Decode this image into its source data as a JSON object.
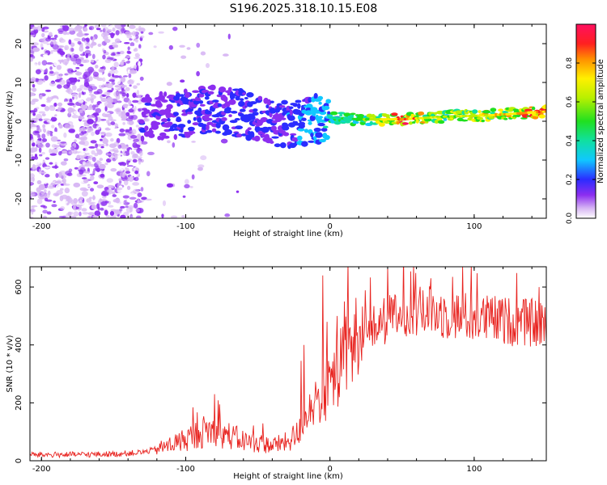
{
  "title": "S196.2025.318.10.15.E08",
  "colors": {
    "snr_line": "#e8231f",
    "scatter_light": "#d9c6f2",
    "scatter_dark": "#7a1fe0",
    "frame": "#000000"
  },
  "chart_data": [
    {
      "type": "heatmap",
      "title": "S196.2025.318.10.15.E08",
      "xlabel": "Height of straight line (km)",
      "ylabel": "Frequency (Hz)",
      "xlim": [
        -208,
        150
      ],
      "ylim": [
        -25,
        25
      ],
      "xticks": [
        -200,
        -100,
        0,
        100
      ],
      "xtick_labels": [
        "-200",
        "-100",
        "0",
        "100"
      ],
      "yticks": [
        -20,
        -10,
        0,
        10,
        20
      ],
      "ytick_labels": [
        "-20",
        "-10",
        "0",
        "10",
        "20"
      ],
      "ridge": {
        "x": [
          -130,
          -100,
          -80,
          -60,
          -40,
          -20,
          0,
          20,
          50,
          80,
          110,
          150
        ],
        "freq": [
          1,
          2,
          3,
          2,
          -1,
          0,
          1,
          0.5,
          0.5,
          1.2,
          1.5,
          2.5
        ],
        "amplitude": [
          0.25,
          0.3,
          0.32,
          0.35,
          0.3,
          0.4,
          0.5,
          0.6,
          1.0,
          0.7,
          0.85,
          0.95
        ]
      },
      "noise_region": {
        "x": [
          -208,
          -130
        ],
        "freq": [
          -25,
          25
        ],
        "amplitude_range": [
          0,
          0.15
        ]
      },
      "colorbar": {
        "label": "Normalized spectral amplitude",
        "ticks": [
          0.0,
          0.2,
          0.4,
          0.6,
          0.8
        ],
        "tick_labels": [
          "0.0",
          "0.2",
          "0.4",
          "0.6",
          "0.8"
        ],
        "range": [
          0,
          1
        ]
      }
    },
    {
      "type": "line",
      "xlabel": "Height of straight line (km)",
      "ylabel": "SNR (10 * v/v)",
      "xlim": [
        -208,
        150
      ],
      "ylim": [
        0,
        670
      ],
      "xticks": [
        -200,
        -100,
        0,
        100
      ],
      "xtick_labels": [
        "-200",
        "-100",
        "0",
        "100"
      ],
      "yticks": [
        0,
        200,
        400,
        600
      ],
      "ytick_labels": [
        "0",
        "200",
        "400",
        "600"
      ],
      "series": [
        {
          "name": "SNR",
          "baseline": {
            "x": [
              -208,
              -180,
              -150,
              -130,
              -115,
              -100,
              -85,
              -75,
              -60,
              -40,
              -30,
              -20,
              -15,
              -10,
              -5,
              0,
              10,
              20,
              30,
              40,
              50,
              70,
              90,
              110,
              130,
              150
            ],
            "y": [
              20,
              20,
              22,
              28,
              45,
              70,
              100,
              90,
              65,
              50,
              60,
              95,
              175,
              200,
              215,
              250,
              330,
              400,
              450,
              480,
              500,
              505,
              490,
              480,
              470,
              465
            ]
          },
          "spikes": [
            {
              "x": -80,
              "y": 230
            },
            {
              "x": -20,
              "y": 345
            },
            {
              "x": -18,
              "y": 400
            },
            {
              "x": -5,
              "y": 640
            },
            {
              "x": -2,
              "y": 480
            },
            {
              "x": 5,
              "y": 500
            },
            {
              "x": 10,
              "y": 550
            },
            {
              "x": 40,
              "y": 670
            },
            {
              "x": 70,
              "y": 630
            },
            {
              "x": 145,
              "y": 600
            }
          ]
        }
      ]
    }
  ]
}
